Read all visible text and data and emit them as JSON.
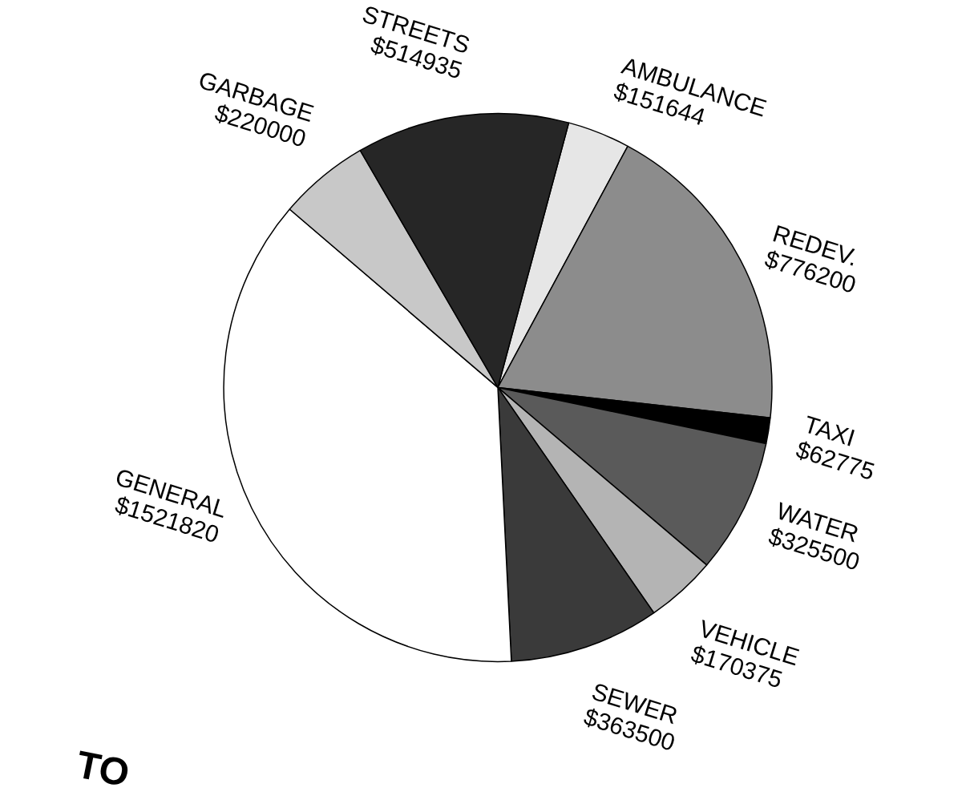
{
  "chart_data": {
    "type": "pie",
    "categories": [
      "AMBULANCE",
      "REDEV.",
      "TAXI",
      "WATER",
      "VEHICLE",
      "SEWER",
      "GENERAL",
      "GARBAGE",
      "STREETS"
    ],
    "values": [
      151644,
      776200,
      62775,
      325500,
      170375,
      363500,
      1521820,
      220000,
      514935
    ],
    "value_labels": [
      "$151644",
      "$776200",
      "$62775",
      "$325500",
      "$170375",
      "$363500",
      "$1521820",
      "$220000",
      "$514935"
    ],
    "colors": [
      "#e6e6e6",
      "#8c8c8c",
      "#000000",
      "#5a5a5a",
      "#b4b4b4",
      "#3a3a3a",
      "#ffffff",
      "#c8c8c8",
      "#262626"
    ],
    "annotations": [
      "TO"
    ]
  }
}
